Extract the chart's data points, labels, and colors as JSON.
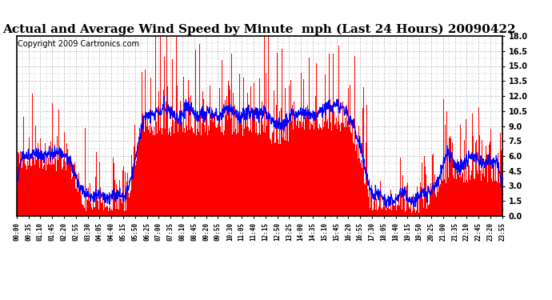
{
  "title": "Actual and Average Wind Speed by Minute  mph (Last 24 Hours) 20090422",
  "copyright": "Copyright 2009 Cartronics.com",
  "y_min": 0.0,
  "y_max": 18.0,
  "y_ticks": [
    0.0,
    1.5,
    3.0,
    4.5,
    6.0,
    7.5,
    9.0,
    10.5,
    12.0,
    13.5,
    15.0,
    16.5,
    18.0
  ],
  "bar_color": "#ff0000",
  "line_color": "#0000ff",
  "background_color": "#ffffff",
  "grid_color": "#c8c8c8",
  "title_fontsize": 11,
  "copyright_fontsize": 7,
  "tick_fontsize": 7,
  "x_tick_labels": [
    "00:00",
    "00:35",
    "01:10",
    "01:45",
    "02:20",
    "02:55",
    "03:30",
    "04:05",
    "04:40",
    "05:15",
    "05:50",
    "06:25",
    "07:00",
    "07:35",
    "08:10",
    "08:45",
    "09:20",
    "09:55",
    "10:30",
    "11:05",
    "11:40",
    "12:15",
    "12:50",
    "13:25",
    "14:00",
    "14:35",
    "15:10",
    "15:45",
    "16:20",
    "16:55",
    "17:30",
    "18:05",
    "18:40",
    "19:15",
    "19:50",
    "20:25",
    "21:00",
    "21:35",
    "22:10",
    "22:45",
    "23:20",
    "23:55"
  ]
}
